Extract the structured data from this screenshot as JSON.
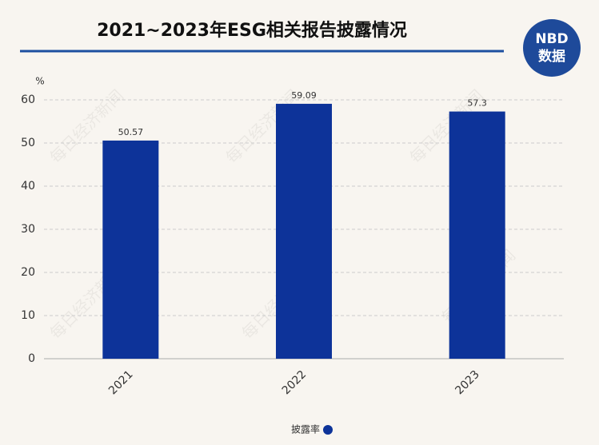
{
  "chart_data": {
    "type": "bar",
    "title": "2021~2023年ESG相关报告披露情况",
    "logo": {
      "top": "NBD",
      "bottom": "数据"
    },
    "watermark": "每日经济新闻",
    "y_unit": "%",
    "categories": [
      "2021",
      "2022",
      "2023"
    ],
    "series": [
      {
        "name": "披露率",
        "color": "#0d3399",
        "values": [
          50.57,
          59.09,
          57.3
        ]
      }
    ],
    "ylim": [
      0,
      60
    ],
    "yticks": [
      0,
      10,
      20,
      30,
      40,
      50,
      60
    ],
    "grid": true,
    "legend": "bottom"
  }
}
